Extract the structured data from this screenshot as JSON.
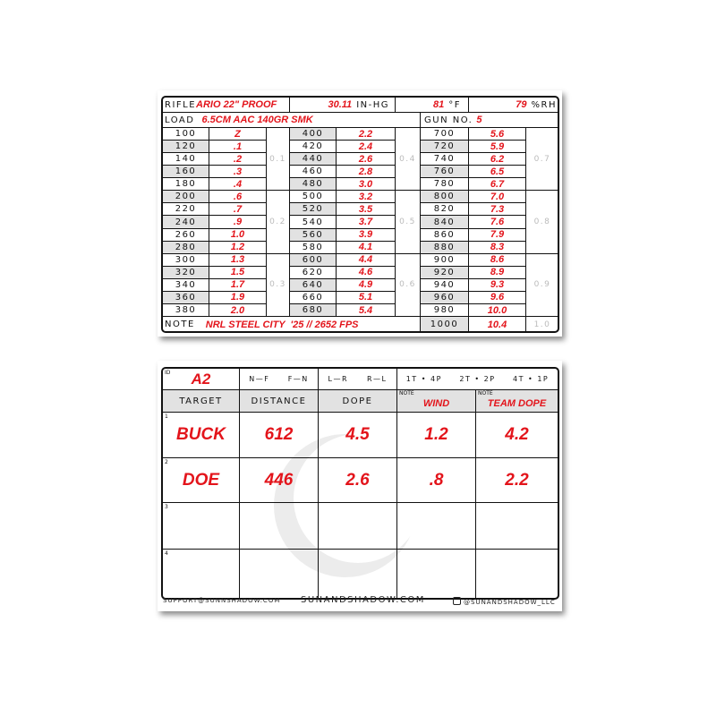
{
  "colors": {
    "ink": "#e3141b",
    "grid": "#111111",
    "shade": "#e2e2e2"
  },
  "card1": {
    "rifle_label": "RIFLE",
    "rifle": "ARIO 22\" PROOF",
    "pressure": "30.11",
    "pressure_unit": "IN-HG",
    "temp": "81",
    "temp_unit": "°F",
    "rh": "79",
    "rh_unit": "%RH",
    "load_label": "LOAD",
    "load": "6.5CM AAC 140GR SMK",
    "gun_label": "GUN NO.",
    "gun": "5",
    "note_label": "NOTE",
    "note": "NRL STEEL CITY  '25 // 2652 FPS",
    "blocks": [
      {
        "rows": [
          [
            "100",
            "Z"
          ],
          [
            "120",
            ".1"
          ],
          [
            "140",
            ".2"
          ],
          [
            "160",
            ".3"
          ],
          [
            "180",
            ".4"
          ],
          [
            "200",
            ".6"
          ],
          [
            "220",
            ".7"
          ],
          [
            "240",
            ".9"
          ],
          [
            "260",
            "1.0"
          ],
          [
            "280",
            "1.2"
          ],
          [
            "300",
            "1.3"
          ],
          [
            "320",
            "1.5"
          ],
          [
            "340",
            "1.7"
          ],
          [
            "360",
            "1.9"
          ],
          [
            "380",
            "2.0"
          ]
        ],
        "mils": [
          "0.1",
          "0.2",
          "0.3"
        ]
      },
      {
        "rows": [
          [
            "400",
            "2.2"
          ],
          [
            "420",
            "2.4"
          ],
          [
            "440",
            "2.6"
          ],
          [
            "460",
            "2.8"
          ],
          [
            "480",
            "3.0"
          ],
          [
            "500",
            "3.2"
          ],
          [
            "520",
            "3.5"
          ],
          [
            "540",
            "3.7"
          ],
          [
            "560",
            "3.9"
          ],
          [
            "580",
            "4.1"
          ],
          [
            "600",
            "4.4"
          ],
          [
            "620",
            "4.6"
          ],
          [
            "640",
            "4.9"
          ],
          [
            "660",
            "5.1"
          ],
          [
            "680",
            "5.4"
          ]
        ],
        "mils": [
          "0.4",
          "0.5",
          "0.6"
        ]
      },
      {
        "rows": [
          [
            "700",
            "5.6"
          ],
          [
            "720",
            "5.9"
          ],
          [
            "740",
            "6.2"
          ],
          [
            "760",
            "6.5"
          ],
          [
            "780",
            "6.7"
          ],
          [
            "800",
            "7.0"
          ],
          [
            "820",
            "7.3"
          ],
          [
            "840",
            "7.6"
          ],
          [
            "860",
            "7.9"
          ],
          [
            "880",
            "8.3"
          ],
          [
            "900",
            "8.6"
          ],
          [
            "920",
            "8.9"
          ],
          [
            "940",
            "9.3"
          ],
          [
            "960",
            "9.6"
          ],
          [
            "980",
            "10.0"
          ]
        ],
        "mils": [
          "0.7",
          "0.8",
          "0.9"
        ]
      }
    ],
    "last_row": {
      "distance": "1000",
      "dope": "10.4",
      "mil": "1.0"
    }
  },
  "card2": {
    "id_label": "ID",
    "id": "A2",
    "option_groups": [
      {
        "options": [
          "N—F",
          "F—N"
        ],
        "selected": "F—N"
      },
      {
        "options": [
          "L—R",
          "R—L"
        ],
        "selected": null
      },
      {
        "options": [
          "1T • 4P",
          "2T • 2P",
          "4T • 1P"
        ],
        "selected": "2T • 2P"
      }
    ],
    "headers": [
      {
        "label": "TARGET"
      },
      {
        "label": "DISTANCE"
      },
      {
        "label": "DOPE"
      },
      {
        "note": "NOTE",
        "value": "WIND"
      },
      {
        "note": "NOTE",
        "value": "TEAM DOPE"
      }
    ],
    "rows": [
      {
        "num": "1",
        "cells": [
          "BUCK",
          "612",
          "4.5",
          "1.2",
          "4.2"
        ]
      },
      {
        "num": "2",
        "cells": [
          "DOE",
          "446",
          "2.6",
          ".8",
          "2.2"
        ]
      },
      {
        "num": "3",
        "cells": [
          "",
          "",
          "",
          "",
          ""
        ]
      },
      {
        "num": "4",
        "cells": [
          "",
          "",
          "",
          "",
          ""
        ]
      }
    ],
    "footer": {
      "email": "SUPPORT@SUNNSHADOW.COM",
      "site": "SUNANDSHADOW.COM",
      "instagram": "@SUNANDSHADOW_LLC"
    }
  }
}
